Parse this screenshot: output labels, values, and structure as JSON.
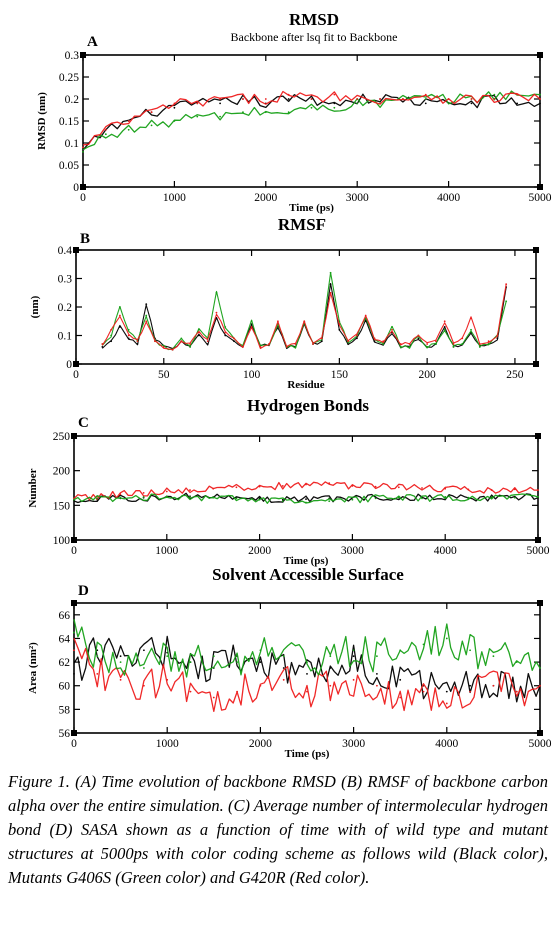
{
  "caption": "Figure 1. (A) Time evolution of backbone RMSD (B) RMSF of backbone carbon alpha over the entire simulation. (C) Average number of intermolecular hydrogen bond (D) SASA shown as a function of time with of wild type and mutant structures at 5000ps with color coding scheme as follows wild (Black color), Mutants G406S (Green color) and G420R (Red color).",
  "colors": {
    "wild": "#000000",
    "G406S": "#16a016",
    "G420R": "#ee1c1c"
  },
  "chart_data": [
    {
      "panel": "A",
      "type": "line",
      "title": "RMSD",
      "subtitle": "Backbone after lsq fit to Backbone",
      "xlabel": "Time (ps)",
      "ylabel": "RMSD (nm)",
      "xlim": [
        0,
        5000
      ],
      "ylim": [
        0,
        0.3
      ],
      "xticks": [
        0,
        1000,
        2000,
        3000,
        4000,
        5000
      ],
      "yticks": [
        0,
        0.05,
        0.1,
        0.15,
        0.2,
        0.25,
        0.3
      ],
      "xtick_labels": [
        "0",
        "1000",
        "2000",
        "3000",
        "4000",
        "5000"
      ],
      "ytick_labels": [
        "0",
        "0.05",
        "0.1",
        "0.15",
        "0.2",
        "0.25",
        "0.3"
      ],
      "x": [
        0,
        250,
        500,
        750,
        1000,
        1250,
        1500,
        1750,
        2000,
        2250,
        2500,
        2750,
        3000,
        3250,
        3500,
        3750,
        4000,
        4250,
        4500,
        4750,
        5000
      ],
      "series": [
        {
          "color": "#000000",
          "values": [
            0.08,
            0.13,
            0.15,
            0.17,
            0.18,
            0.19,
            0.19,
            0.2,
            0.19,
            0.2,
            0.2,
            0.19,
            0.2,
            0.2,
            0.2,
            0.19,
            0.19,
            0.19,
            0.2,
            0.19,
            0.19
          ]
        },
        {
          "color": "#16a016",
          "values": [
            0.08,
            0.12,
            0.13,
            0.14,
            0.15,
            0.16,
            0.16,
            0.17,
            0.17,
            0.17,
            0.18,
            0.18,
            0.19,
            0.19,
            0.2,
            0.2,
            0.2,
            0.2,
            0.21,
            0.21,
            0.21
          ]
        },
        {
          "color": "#ee1c1c",
          "values": [
            0.09,
            0.13,
            0.15,
            0.17,
            0.19,
            0.19,
            0.2,
            0.2,
            0.2,
            0.21,
            0.2,
            0.21,
            0.2,
            0.2,
            0.2,
            0.21,
            0.2,
            0.2,
            0.2,
            0.21,
            0.2
          ]
        }
      ]
    },
    {
      "panel": "B",
      "type": "line",
      "title": "RMSF",
      "xlabel": "Residue",
      "ylabel": "(nm)",
      "xlim": [
        0,
        262
      ],
      "ylim": [
        0,
        0.4
      ],
      "xticks": [
        0,
        50,
        100,
        150,
        200,
        250
      ],
      "yticks": [
        0,
        0.1,
        0.2,
        0.3,
        0.4
      ],
      "xtick_labels": [
        "0",
        "50",
        "100",
        "150",
        "200",
        "250"
      ],
      "ytick_labels": [
        "0",
        "0.1",
        "0.2",
        "0.3",
        "0.4"
      ],
      "x": [
        15,
        20,
        25,
        30,
        35,
        40,
        45,
        50,
        55,
        60,
        65,
        70,
        75,
        80,
        85,
        90,
        95,
        100,
        105,
        110,
        115,
        120,
        125,
        130,
        135,
        140,
        145,
        150,
        155,
        160,
        165,
        170,
        175,
        180,
        185,
        190,
        195,
        200,
        205,
        210,
        215,
        220,
        225,
        230,
        235,
        240,
        245
      ],
      "series": [
        {
          "color": "#000000",
          "values": [
            0.06,
            0.08,
            0.13,
            0.09,
            0.07,
            0.21,
            0.09,
            0.06,
            0.05,
            0.08,
            0.06,
            0.1,
            0.07,
            0.16,
            0.1,
            0.08,
            0.06,
            0.14,
            0.06,
            0.07,
            0.13,
            0.06,
            0.06,
            0.14,
            0.07,
            0.08,
            0.28,
            0.12,
            0.07,
            0.09,
            0.15,
            0.08,
            0.07,
            0.11,
            0.06,
            0.06,
            0.09,
            0.06,
            0.07,
            0.13,
            0.06,
            0.07,
            0.11,
            0.06,
            0.07,
            0.09,
            0.27
          ]
        },
        {
          "color": "#16a016",
          "values": [
            0.07,
            0.1,
            0.2,
            0.12,
            0.08,
            0.17,
            0.08,
            0.06,
            0.05,
            0.09,
            0.06,
            0.12,
            0.09,
            0.25,
            0.13,
            0.09,
            0.06,
            0.15,
            0.06,
            0.07,
            0.14,
            0.06,
            0.06,
            0.15,
            0.07,
            0.09,
            0.32,
            0.15,
            0.08,
            0.1,
            0.16,
            0.09,
            0.07,
            0.13,
            0.06,
            0.06,
            0.1,
            0.06,
            0.07,
            0.12,
            0.06,
            0.07,
            0.12,
            0.06,
            0.07,
            0.1,
            0.22
          ]
        },
        {
          "color": "#ee1c1c",
          "values": [
            0.07,
            0.12,
            0.17,
            0.1,
            0.08,
            0.15,
            0.08,
            0.06,
            0.05,
            0.08,
            0.07,
            0.11,
            0.08,
            0.18,
            0.11,
            0.09,
            0.06,
            0.13,
            0.06,
            0.07,
            0.15,
            0.06,
            0.07,
            0.15,
            0.07,
            0.09,
            0.25,
            0.14,
            0.08,
            0.1,
            0.17,
            0.09,
            0.08,
            0.12,
            0.07,
            0.07,
            0.1,
            0.07,
            0.08,
            0.15,
            0.07,
            0.09,
            0.16,
            0.07,
            0.08,
            0.1,
            0.28
          ]
        }
      ]
    },
    {
      "panel": "C",
      "type": "line",
      "title": "Hydrogen Bonds",
      "xlabel": "Time (ps)",
      "ylabel": "Number",
      "xlim": [
        0,
        5000
      ],
      "ylim": [
        100,
        250
      ],
      "xticks": [
        0,
        1000,
        2000,
        3000,
        4000,
        5000
      ],
      "yticks": [
        100,
        150,
        200,
        250
      ],
      "xtick_labels": [
        "0",
        "1000",
        "2000",
        "3000",
        "4000",
        "5000"
      ],
      "ytick_labels": [
        "100",
        "150",
        "200",
        "250"
      ],
      "x": [
        0,
        250,
        500,
        750,
        1000,
        1250,
        1500,
        1750,
        2000,
        2250,
        2500,
        2750,
        3000,
        3250,
        3500,
        3750,
        4000,
        4250,
        4500,
        4750,
        5000
      ],
      "series": [
        {
          "color": "#000000",
          "values": [
            157,
            158,
            160,
            161,
            162,
            163,
            162,
            161,
            160,
            158,
            159,
            160,
            161,
            162,
            162,
            161,
            162,
            160,
            161,
            162,
            161
          ]
        },
        {
          "color": "#ee1c1c",
          "values": [
            160,
            163,
            166,
            168,
            170,
            172,
            174,
            176,
            177,
            178,
            180,
            182,
            178,
            177,
            176,
            175,
            174,
            173,
            172,
            173,
            172
          ]
        },
        {
          "color": "#16a016",
          "values": [
            158,
            160,
            161,
            162,
            163,
            162,
            161,
            160,
            158,
            156,
            154,
            156,
            158,
            160,
            161,
            160,
            162,
            161,
            162,
            161,
            162
          ]
        }
      ]
    },
    {
      "panel": "D",
      "type": "line",
      "title": "Solvent Accessible Surface",
      "xlabel": "Time (ps)",
      "ylabel": "Area (nm²)",
      "xlim": [
        0,
        5000
      ],
      "ylim": [
        56,
        67
      ],
      "xticks": [
        0,
        1000,
        2000,
        3000,
        4000,
        5000
      ],
      "yticks": [
        56,
        58,
        60,
        62,
        64,
        66
      ],
      "xtick_labels": [
        "0",
        "1000",
        "2000",
        "3000",
        "4000",
        "5000"
      ],
      "ytick_labels": [
        "56",
        "58",
        "60",
        "62",
        "64",
        "66"
      ],
      "x": [
        0,
        250,
        500,
        750,
        1000,
        1250,
        1500,
        1750,
        2000,
        2250,
        2500,
        2750,
        3000,
        3250,
        3500,
        3750,
        4000,
        4250,
        4500,
        4750,
        5000
      ],
      "series": [
        {
          "color": "#000000",
          "values": [
            61.0,
            63.0,
            62.5,
            63.0,
            62.8,
            62.0,
            61.5,
            62.5,
            62.0,
            61.5,
            61.0,
            61.5,
            62.5,
            61.0,
            60.5,
            60.0,
            59.5,
            60.0,
            60.0,
            59.5,
            60.0
          ]
        },
        {
          "color": "#ee1c1c",
          "values": [
            63.0,
            61.0,
            60.5,
            60.0,
            60.5,
            59.5,
            59.0,
            59.5,
            60.0,
            60.5,
            59.5,
            60.0,
            60.5,
            60.0,
            59.0,
            59.5,
            58.5,
            59.5,
            60.0,
            59.5,
            60.0
          ]
        },
        {
          "color": "#16a016",
          "values": [
            64.5,
            62.5,
            62.0,
            61.5,
            62.5,
            62.0,
            62.5,
            62.0,
            63.0,
            62.5,
            62.0,
            62.5,
            63.0,
            62.5,
            63.0,
            63.5,
            64.0,
            63.0,
            62.5,
            62.0,
            61.5
          ]
        }
      ]
    }
  ]
}
